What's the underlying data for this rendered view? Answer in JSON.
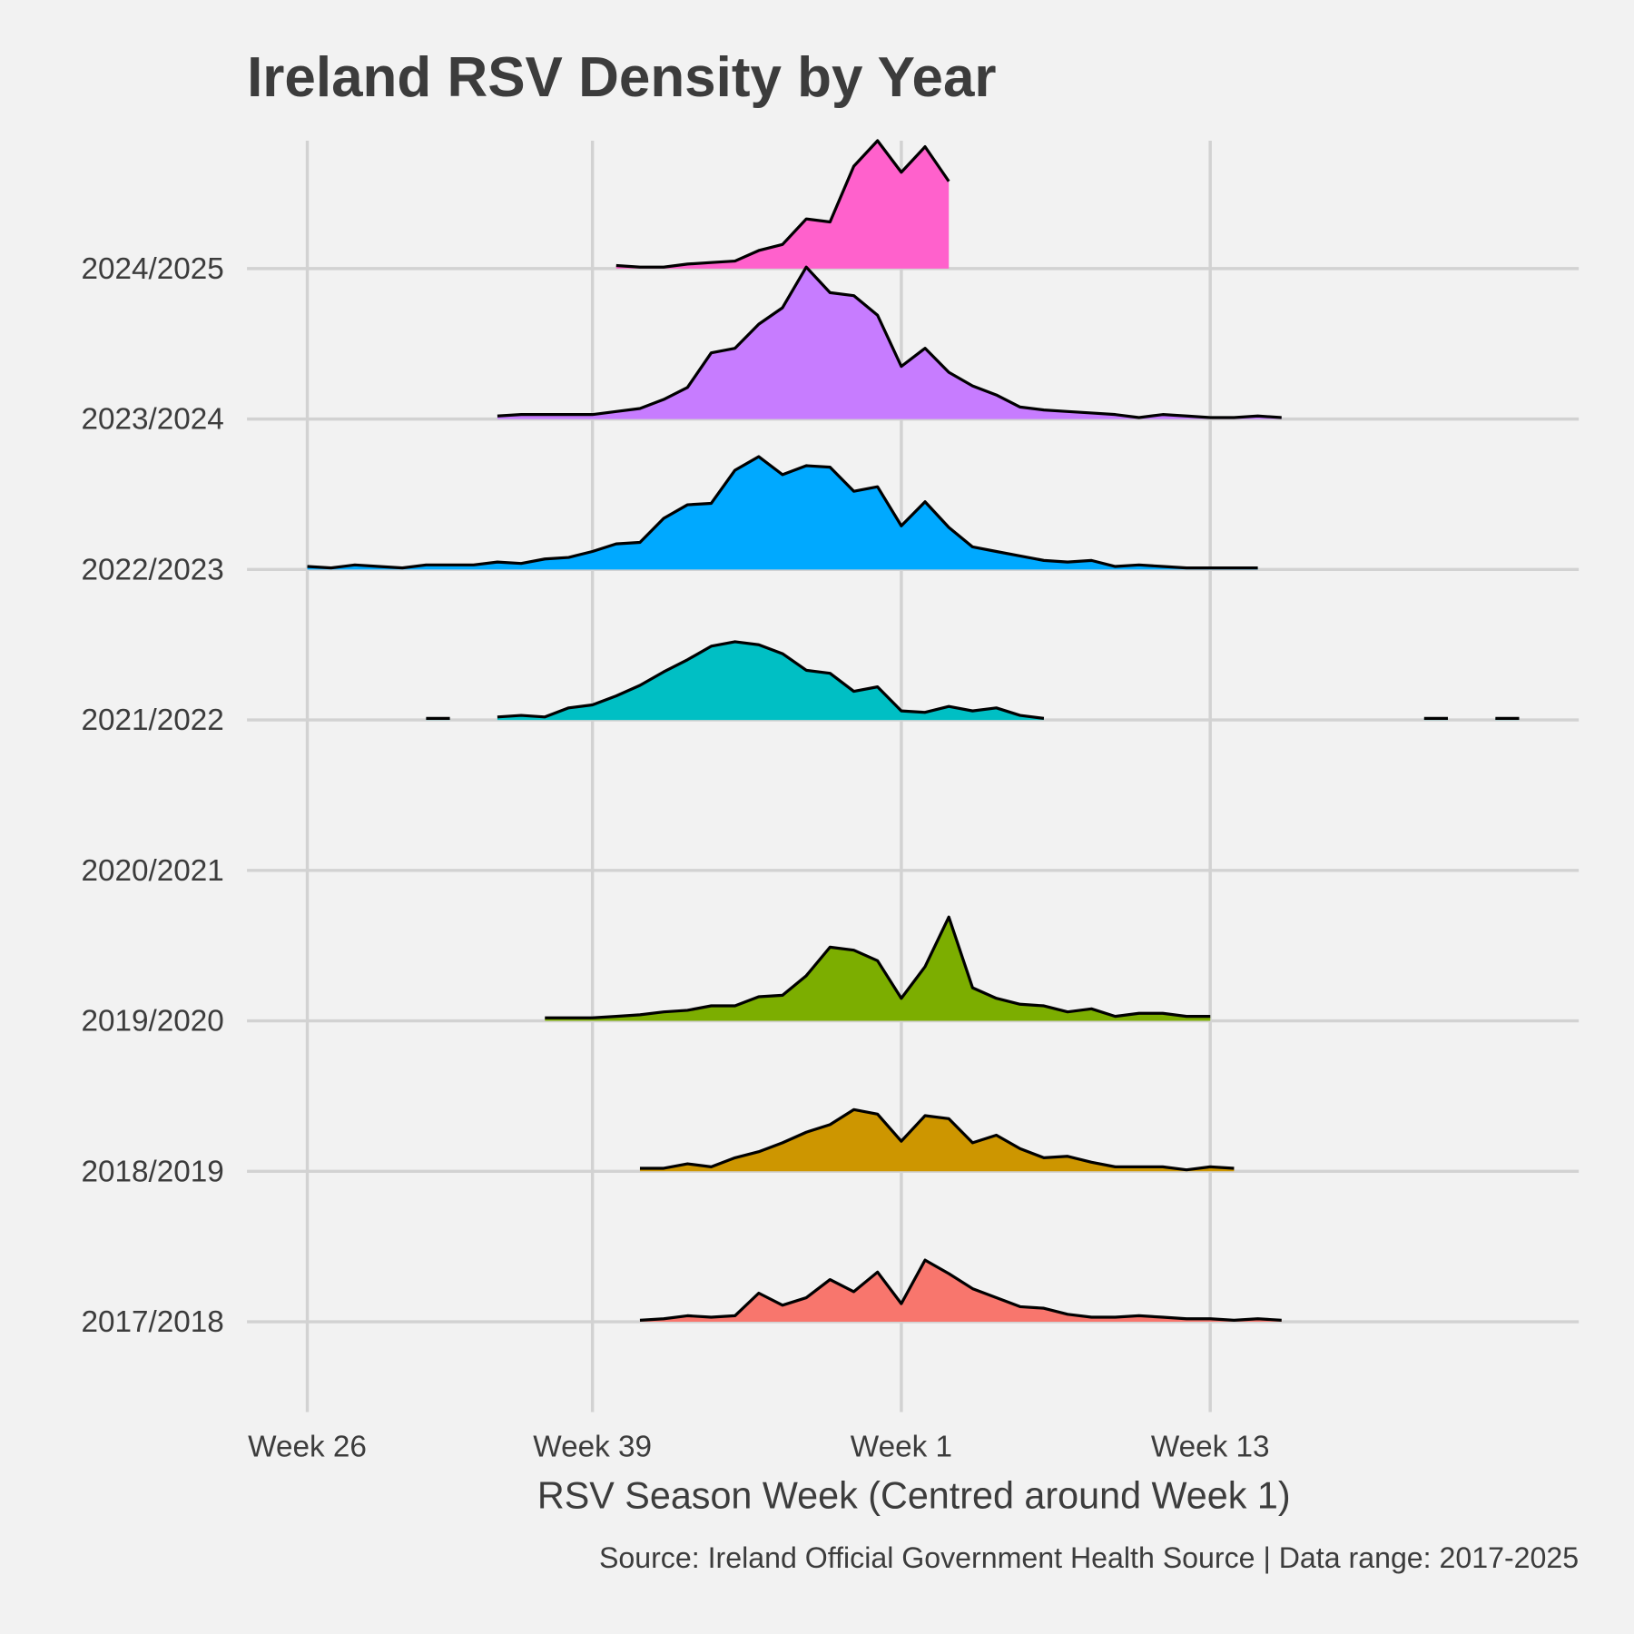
{
  "chart_data": {
    "type": "ridgeline",
    "title": "Ireland RSV Density by Year",
    "x_label": "RSV Season Week (Centred around Week 1)",
    "caption": "Source: Ireland Official Government Health Source | Data range: 2017-2025",
    "x": [
      0,
      1,
      2,
      3,
      4,
      5,
      6,
      7,
      8,
      9,
      10,
      11,
      12,
      13,
      14,
      15,
      16,
      17,
      18,
      19,
      20,
      21,
      22,
      23,
      24,
      25,
      26,
      27,
      28,
      29,
      30,
      31,
      32,
      33,
      34,
      35,
      36,
      37,
      38,
      39,
      40,
      41,
      42,
      43,
      44,
      45,
      46,
      47,
      48,
      49,
      50,
      51
    ],
    "xlim": [
      -2.54,
      53.51
    ],
    "xticks": [
      {
        "value": 0,
        "label": "Week 26"
      },
      {
        "value": 12,
        "label": "Week 39"
      },
      {
        "value": 25,
        "label": "Week 1"
      },
      {
        "value": 38,
        "label": "Week 13"
      }
    ],
    "ylim": [
      -0.6,
      7.85
    ],
    "grid": true,
    "line_color": "#000000",
    "series": [
      {
        "name": "2017/2018",
        "color": "#F8766D",
        "values": [
          null,
          null,
          null,
          null,
          null,
          null,
          null,
          null,
          null,
          null,
          null,
          null,
          null,
          null,
          0.01,
          0.02,
          0.04,
          0.03,
          0.04,
          0.19,
          0.11,
          0.16,
          0.28,
          0.2,
          0.33,
          0.12,
          0.41,
          0.32,
          0.22,
          0.16,
          0.1,
          0.09,
          0.05,
          0.03,
          0.03,
          0.04,
          0.03,
          0.02,
          0.02,
          0.01,
          0.02,
          0.01,
          null,
          null,
          null,
          null,
          null,
          null,
          null,
          null,
          null,
          null
        ]
      },
      {
        "name": "2018/2019",
        "color": "#CD9600",
        "values": [
          null,
          null,
          null,
          null,
          null,
          null,
          null,
          null,
          null,
          null,
          null,
          null,
          null,
          null,
          0.02,
          0.02,
          0.05,
          0.03,
          0.09,
          0.13,
          0.19,
          0.26,
          0.31,
          0.41,
          0.38,
          0.2,
          0.37,
          0.35,
          0.19,
          0.24,
          0.15,
          0.09,
          0.1,
          0.06,
          0.03,
          0.03,
          0.03,
          0.01,
          0.03,
          0.02,
          null,
          null,
          null,
          null,
          null,
          null,
          null,
          null,
          null,
          null,
          null,
          null
        ]
      },
      {
        "name": "2019/2020",
        "color": "#7CAE00",
        "values": [
          null,
          null,
          null,
          null,
          null,
          null,
          null,
          null,
          null,
          null,
          0.02,
          0.02,
          0.02,
          0.03,
          0.04,
          0.06,
          0.07,
          0.1,
          0.1,
          0.16,
          0.17,
          0.3,
          0.49,
          0.47,
          0.4,
          0.15,
          0.36,
          0.69,
          0.22,
          0.15,
          0.11,
          0.1,
          0.06,
          0.08,
          0.03,
          0.05,
          0.05,
          0.03,
          0.03,
          null,
          null,
          null,
          null,
          null,
          null,
          null,
          null,
          null,
          null,
          null,
          null,
          null
        ]
      },
      {
        "name": "2020/2021",
        "color": "#00BE67",
        "values": [
          null,
          null,
          null,
          null,
          null,
          null,
          null,
          null,
          null,
          null,
          null,
          null,
          null,
          null,
          null,
          null,
          null,
          null,
          null,
          null,
          null,
          null,
          null,
          null,
          null,
          null,
          null,
          null,
          null,
          null,
          null,
          null,
          null,
          null,
          null,
          null,
          null,
          null,
          null,
          null,
          null,
          null,
          null,
          null,
          null,
          null,
          null,
          null,
          null,
          null,
          null,
          null
        ]
      },
      {
        "name": "2021/2022",
        "color": "#00BFC4",
        "values": [
          null,
          null,
          null,
          null,
          null,
          0.01,
          0.01,
          null,
          0.02,
          0.03,
          0.02,
          0.08,
          0.1,
          0.16,
          0.23,
          0.32,
          0.4,
          0.49,
          0.52,
          0.5,
          0.44,
          0.33,
          0.31,
          0.19,
          0.22,
          0.06,
          0.05,
          0.09,
          0.06,
          0.08,
          0.03,
          0.01,
          null,
          null,
          null,
          null,
          null,
          null,
          null,
          null,
          null,
          null,
          null,
          null,
          null,
          null,
          null,
          0.01,
          0.01,
          null,
          0.01,
          0.01
        ]
      },
      {
        "name": "2022/2023",
        "color": "#00A9FF",
        "values": [
          0.02,
          0.01,
          0.03,
          0.02,
          0.01,
          0.03,
          0.03,
          0.03,
          0.05,
          0.04,
          0.07,
          0.08,
          0.12,
          0.17,
          0.18,
          0.34,
          0.43,
          0.44,
          0.66,
          0.75,
          0.63,
          0.69,
          0.68,
          0.52,
          0.55,
          0.29,
          0.45,
          0.28,
          0.15,
          0.12,
          0.09,
          0.06,
          0.05,
          0.06,
          0.02,
          0.03,
          0.02,
          0.01,
          0.01,
          0.01,
          0.01,
          null,
          null,
          null,
          null,
          null,
          null,
          null,
          null,
          null,
          null,
          null
        ]
      },
      {
        "name": "2023/2024",
        "color": "#C77CFF",
        "values": [
          null,
          null,
          null,
          null,
          null,
          null,
          null,
          null,
          0.02,
          0.03,
          0.03,
          0.03,
          0.03,
          0.05,
          0.07,
          0.13,
          0.21,
          0.44,
          0.47,
          0.63,
          0.74,
          1.01,
          0.84,
          0.82,
          0.69,
          0.35,
          0.47,
          0.31,
          0.22,
          0.16,
          0.08,
          0.06,
          0.05,
          0.04,
          0.03,
          0.01,
          0.03,
          0.02,
          0.01,
          0.01,
          0.02,
          0.01,
          null,
          null,
          null,
          null,
          null,
          null,
          null,
          null,
          null,
          null
        ]
      },
      {
        "name": "2024/2025",
        "color": "#FF61CC",
        "values": [
          null,
          null,
          null,
          null,
          null,
          null,
          null,
          null,
          null,
          null,
          null,
          null,
          null,
          0.02,
          0.01,
          0.01,
          0.03,
          0.04,
          0.05,
          0.12,
          0.16,
          0.33,
          0.31,
          0.68,
          0.85,
          0.64,
          0.81,
          0.58,
          null,
          null,
          null,
          null,
          null,
          null,
          null,
          null,
          null,
          null,
          null,
          null,
          null,
          null,
          null,
          null,
          null,
          null,
          null,
          null,
          null,
          null,
          null,
          null
        ]
      }
    ]
  }
}
